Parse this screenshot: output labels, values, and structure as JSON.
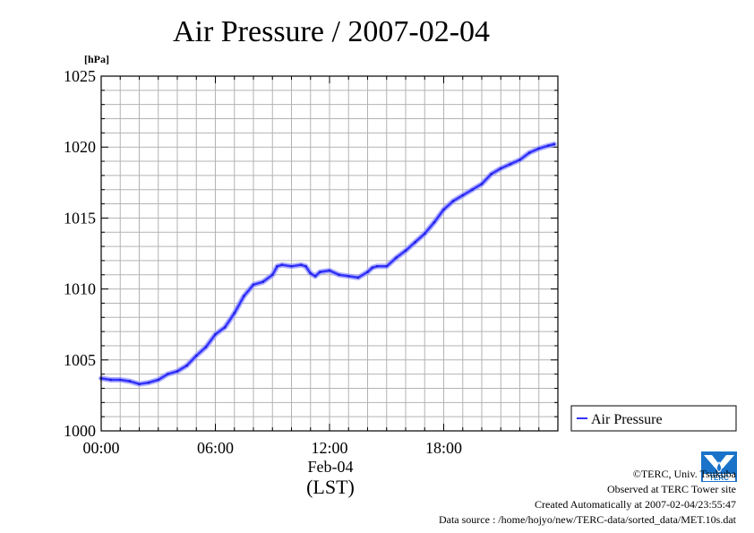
{
  "chart_data": {
    "type": "line",
    "title": "Air Pressure / 2007-02-04",
    "ylabel": "[hPa]",
    "ylim": [
      1000,
      1025
    ],
    "yticks": [
      1000,
      1005,
      1010,
      1015,
      1020,
      1025
    ],
    "xlim": [
      0,
      24
    ],
    "xticks": [
      {
        "value": 0,
        "label": "00:00"
      },
      {
        "value": 6,
        "label": "06:00"
      },
      {
        "value": 12,
        "label": "12:00"
      },
      {
        "value": 18,
        "label": "18:00"
      }
    ],
    "xdate": "Feb-04",
    "xunit": "(LST)",
    "grid": true,
    "legend_position": "right",
    "series": [
      {
        "name": "Air Pressure",
        "color": "#3333ff",
        "x": [
          0,
          0.5,
          1,
          1.5,
          2,
          2.5,
          3,
          3.5,
          4,
          4.5,
          5,
          5.5,
          6,
          6.5,
          7,
          7.5,
          8,
          8.5,
          9,
          9.25,
          9.5,
          10,
          10.5,
          10.75,
          11,
          11.25,
          11.5,
          12,
          12.5,
          13,
          13.5,
          14,
          14.25,
          14.5,
          15,
          15.5,
          16,
          16.5,
          17,
          17.5,
          18,
          18.5,
          19,
          19.5,
          20,
          20.5,
          21,
          21.5,
          22,
          22.5,
          23,
          23.5,
          23.8
        ],
        "values": [
          1003.7,
          1003.6,
          1003.6,
          1003.5,
          1003.3,
          1003.4,
          1003.6,
          1004.0,
          1004.2,
          1004.6,
          1005.3,
          1005.9,
          1006.8,
          1007.3,
          1008.3,
          1009.5,
          1010.3,
          1010.5,
          1011.0,
          1011.6,
          1011.7,
          1011.6,
          1011.7,
          1011.6,
          1011.1,
          1010.9,
          1011.2,
          1011.3,
          1011.0,
          1010.9,
          1010.8,
          1011.2,
          1011.5,
          1011.6,
          1011.6,
          1012.2,
          1012.7,
          1013.3,
          1013.9,
          1014.7,
          1015.6,
          1016.2,
          1016.6,
          1017.0,
          1017.4,
          1018.1,
          1018.5,
          1018.8,
          1019.1,
          1019.6,
          1019.9,
          1020.1,
          1020.2
        ]
      }
    ]
  },
  "credits": {
    "copyright": "©TERC, Univ. Tsukuba",
    "observed": "Observed at TERC Tower site",
    "created": "Created Automatically at 2007-02-04/23:55:47",
    "source": "Data source : /home/hojyo/new/TERC-data/sorted_data/MET.10s.dat"
  },
  "logo": {
    "text": "TERC",
    "color": "#1a73c9"
  }
}
